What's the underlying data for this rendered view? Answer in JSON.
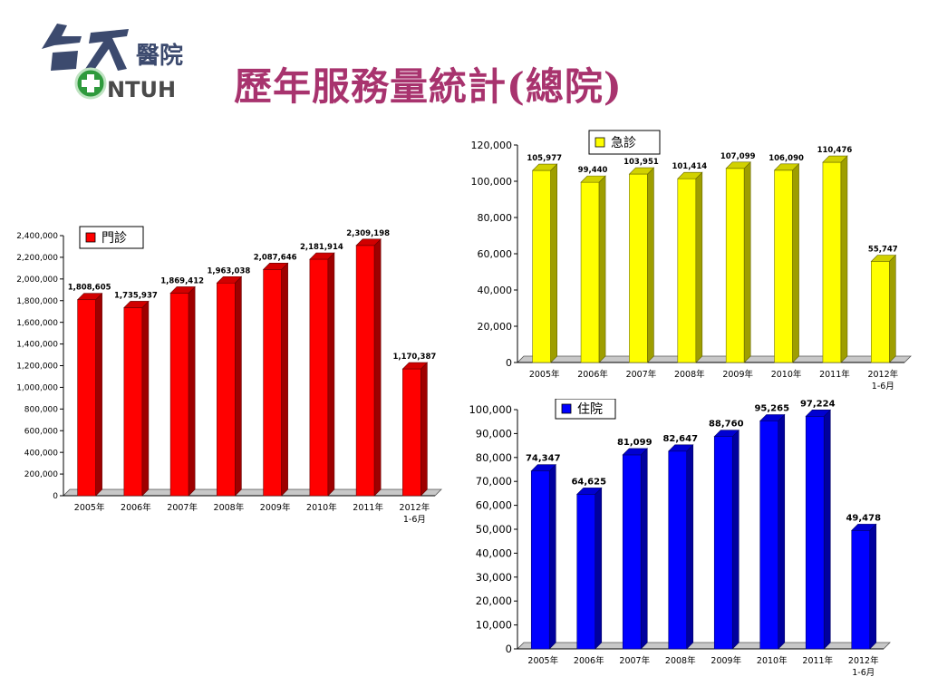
{
  "logo": {
    "chinese_text": "台大醫院",
    "english_text": "NTUH"
  },
  "page_title": "歷年服務量統計(總院)",
  "colors": {
    "title": "#a8336e",
    "outpatient": "#ff0000",
    "emergency": "#ffff00",
    "inpatient": "#0000ff"
  },
  "chart_data": [
    {
      "id": "outpatient",
      "type": "bar",
      "categories": [
        "2005年",
        "2006年",
        "2007年",
        "2008年",
        "2009年",
        "2010年",
        "2011年",
        "2012年\n1-6月"
      ],
      "series": [
        {
          "name": "門診",
          "values": [
            1808605,
            1735937,
            1869412,
            1963038,
            2087646,
            2181914,
            2309198,
            1170387
          ]
        }
      ],
      "data_labels": [
        "1,808,605",
        "1,735,937",
        "1,869,412",
        "1,963,038",
        "2,087,646",
        "2,181,914",
        "2,309,198",
        "1,170,387"
      ],
      "yticks": [
        "0",
        "200,000",
        "400,000",
        "600,000",
        "800,000",
        "1,000,000",
        "1,200,000",
        "1,400,000",
        "1,600,000",
        "1,800,000",
        "2,000,000",
        "2,200,000",
        "2,400,000"
      ],
      "ylim": [
        0,
        2400000
      ],
      "legend_position": "top-left"
    },
    {
      "id": "emergency",
      "type": "bar",
      "categories": [
        "2005年",
        "2006年",
        "2007年",
        "2008年",
        "2009年",
        "2010年",
        "2011年",
        "2012年\n1-6月"
      ],
      "series": [
        {
          "name": "急診",
          "values": [
            105977,
            99440,
            103951,
            101414,
            107099,
            106090,
            110476,
            55747
          ]
        }
      ],
      "data_labels": [
        "105,977",
        "99,440",
        "103,951",
        "101,414",
        "107,099",
        "106,090",
        "110,476",
        "55,747"
      ],
      "yticks": [
        "0",
        "20,000",
        "40,000",
        "60,000",
        "80,000",
        "100,000",
        "120,000"
      ],
      "ylim": [
        0,
        120000
      ],
      "legend_position": "top-right"
    },
    {
      "id": "inpatient",
      "type": "bar",
      "categories": [
        "2005年",
        "2006年",
        "2007年",
        "2008年",
        "2009年",
        "2010年",
        "2011年",
        "2012年\n1-6月"
      ],
      "series": [
        {
          "name": "住院",
          "values": [
            74347,
            64625,
            81099,
            82647,
            88760,
            95265,
            97224,
            49478
          ]
        }
      ],
      "data_labels": [
        "74,347",
        "64,625",
        "81,099",
        "82,647",
        "88,760",
        "95,265",
        "97,224",
        "49,478"
      ],
      "yticks": [
        "0",
        "10,000",
        "20,000",
        "30,000",
        "40,000",
        "50,000",
        "60,000",
        "70,000",
        "80,000",
        "90,000",
        "100,000"
      ],
      "ylim": [
        0,
        100000
      ],
      "legend_position": "top-left"
    }
  ]
}
